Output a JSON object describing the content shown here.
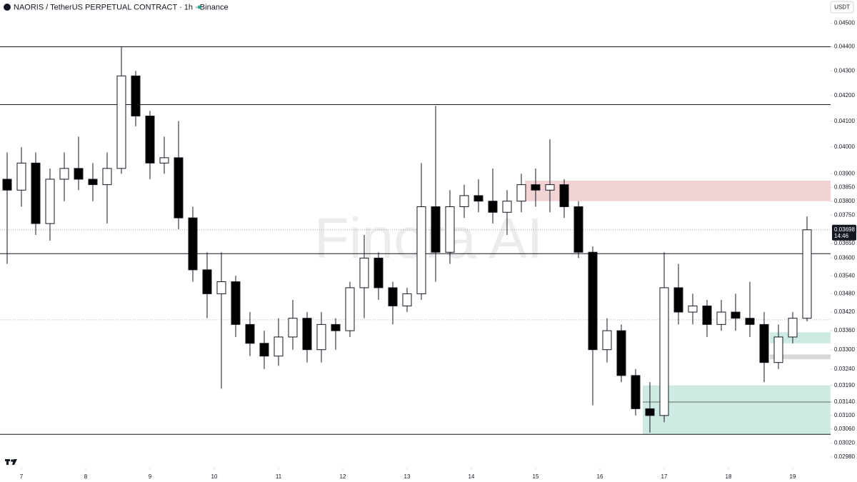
{
  "chart_data": {
    "type": "candlestick",
    "title": "NAORIS / TetherUS PERPETUAL CONTRACT · 1h · Binance",
    "currency": "USDT",
    "watermark": "Finora AI",
    "log_scale": true,
    "ylim": [
      0.0295,
      0.046
    ],
    "yticks": [
      {
        "value": 0.045,
        "label": "0.04500"
      },
      {
        "value": 0.044,
        "label": "0.04400"
      },
      {
        "value": 0.043,
        "label": "0.04300"
      },
      {
        "value": 0.042,
        "label": "0.04200"
      },
      {
        "value": 0.041,
        "label": "0.04100"
      },
      {
        "value": 0.04,
        "label": "0.04000"
      },
      {
        "value": 0.039,
        "label": "0.03900"
      },
      {
        "value": 0.0385,
        "label": "0.03850"
      },
      {
        "value": 0.038,
        "label": "0.03800"
      },
      {
        "value": 0.0375,
        "label": "0.03750"
      },
      {
        "value": 0.0365,
        "label": "0.03650"
      },
      {
        "value": 0.036,
        "label": "0.03600"
      },
      {
        "value": 0.0354,
        "label": "0.03540"
      },
      {
        "value": 0.0348,
        "label": "0.03480"
      },
      {
        "value": 0.0342,
        "label": "0.03420"
      },
      {
        "value": 0.0336,
        "label": "0.03360"
      },
      {
        "value": 0.033,
        "label": "0.03300"
      },
      {
        "value": 0.0324,
        "label": "0.03240"
      },
      {
        "value": 0.0319,
        "label": "0.03190"
      },
      {
        "value": 0.0314,
        "label": "0.03140"
      },
      {
        "value": 0.031,
        "label": "0.03100"
      },
      {
        "value": 0.0306,
        "label": "0.03060"
      },
      {
        "value": 0.0302,
        "label": "0.03020"
      },
      {
        "value": 0.0298,
        "label": "0.02980"
      }
    ],
    "xlim": [
      0,
      58.15
    ],
    "xticks": [
      {
        "value": 1.5,
        "label": "7"
      },
      {
        "value": 6,
        "label": "8"
      },
      {
        "value": 10.5,
        "label": "9"
      },
      {
        "value": 15,
        "label": "10"
      },
      {
        "value": 19.5,
        "label": "11"
      },
      {
        "value": 24,
        "label": "12"
      },
      {
        "value": 28.5,
        "label": "13"
      },
      {
        "value": 33,
        "label": "14"
      },
      {
        "value": 37.5,
        "label": "15"
      },
      {
        "value": 42,
        "label": "16"
      },
      {
        "value": 46.5,
        "label": "17"
      },
      {
        "value": 51,
        "label": "18"
      },
      {
        "value": 55.5,
        "label": "19"
      }
    ],
    "up_color": "#ffffff",
    "down_color": "#000000",
    "candles": {
      "open": [
        0.0388,
        0.0384,
        0.0394,
        0.0372,
        0.0388,
        0.0392,
        0.0388,
        0.0386,
        0.0392,
        0.0428,
        0.0412,
        0.0394,
        0.0396,
        0.0374,
        0.0356,
        0.0348,
        0.0352,
        0.0338,
        0.0332,
        0.0328,
        0.0334,
        0.034,
        0.033,
        0.0338,
        0.0336,
        0.035,
        0.036,
        0.035,
        0.0344,
        0.0348,
        0.0378,
        0.0362,
        0.0378,
        0.0382,
        0.038,
        0.0376,
        0.038,
        0.0386,
        0.0384,
        0.0386,
        0.0378,
        0.0362,
        0.033,
        0.0336,
        0.0322,
        0.0312,
        0.031,
        0.035,
        0.0342,
        0.0344,
        0.0338,
        0.0342,
        0.034,
        0.0338,
        0.0326,
        0.0334,
        0.034
      ],
      "high": [
        0.0398,
        0.04,
        0.0398,
        0.0392,
        0.0398,
        0.0404,
        0.0394,
        0.0398,
        0.044,
        0.043,
        0.0414,
        0.0404,
        0.041,
        0.0378,
        0.0362,
        0.0362,
        0.0354,
        0.0342,
        0.0336,
        0.034,
        0.0346,
        0.0342,
        0.0342,
        0.034,
        0.0352,
        0.0368,
        0.0362,
        0.0352,
        0.035,
        0.0394,
        0.0416,
        0.0384,
        0.0386,
        0.0388,
        0.0392,
        0.0384,
        0.039,
        0.0392,
        0.0403,
        0.0388,
        0.038,
        0.0364,
        0.034,
        0.0338,
        0.0324,
        0.032,
        0.0362,
        0.0358,
        0.0348,
        0.0346,
        0.0346,
        0.0348,
        0.0352,
        0.0342,
        0.0338,
        0.0342,
        0.03745
      ],
      "low": [
        0.0358,
        0.0378,
        0.0368,
        0.0366,
        0.038,
        0.0384,
        0.038,
        0.0372,
        0.039,
        0.0408,
        0.0388,
        0.039,
        0.037,
        0.0352,
        0.034,
        0.0318,
        0.0334,
        0.0328,
        0.0324,
        0.0325,
        0.033,
        0.0326,
        0.0326,
        0.033,
        0.0334,
        0.034,
        0.0346,
        0.0338,
        0.0342,
        0.0346,
        0.0352,
        0.0358,
        0.0374,
        0.0376,
        0.0372,
        0.0368,
        0.0376,
        0.0378,
        0.0376,
        0.0374,
        0.036,
        0.0313,
        0.0326,
        0.032,
        0.031,
        0.0305,
        0.0308,
        0.0338,
        0.0338,
        0.0334,
        0.0336,
        0.0336,
        0.0334,
        0.032,
        0.0324,
        0.0332,
        0.0339
      ],
      "close": [
        0.0384,
        0.0394,
        0.0372,
        0.0388,
        0.0392,
        0.0388,
        0.0386,
        0.0392,
        0.0428,
        0.0412,
        0.0394,
        0.0396,
        0.0374,
        0.0356,
        0.0348,
        0.0352,
        0.0338,
        0.0332,
        0.0328,
        0.0334,
        0.034,
        0.033,
        0.0338,
        0.0336,
        0.035,
        0.036,
        0.035,
        0.0344,
        0.0348,
        0.0378,
        0.0362,
        0.0378,
        0.0382,
        0.038,
        0.0376,
        0.038,
        0.0386,
        0.0384,
        0.0386,
        0.0378,
        0.0362,
        0.033,
        0.0336,
        0.0322,
        0.0312,
        0.031,
        0.035,
        0.0342,
        0.0344,
        0.0338,
        0.0342,
        0.034,
        0.0338,
        0.0326,
        0.0334,
        0.034,
        0.03698
      ]
    },
    "levels": [
      {
        "value": 0.044,
        "style": "solid"
      },
      {
        "value": 0.04165,
        "style": "solid"
      },
      {
        "value": 0.03615,
        "style": "solid"
      },
      {
        "value": 0.03395,
        "style": "dotted"
      },
      {
        "value": 0.03045,
        "style": "solid"
      }
    ],
    "zones": [
      {
        "low": 0.038,
        "high": 0.03875,
        "start": 36.75,
        "color": "#f2d3d4"
      },
      {
        "low": 0.03045,
        "high": 0.0319,
        "start": 45.0,
        "color": "#cdeae3"
      },
      {
        "low": 0.0332,
        "high": 0.03355,
        "start": 53.9,
        "color": "#cdeae3"
      },
      {
        "low": 0.0327,
        "high": 0.03285,
        "start": 53.9,
        "color": "#d9d9d9"
      }
    ],
    "zone_line": {
      "value": 0.0314,
      "start": 45.0,
      "color": "#9aa8a4"
    },
    "last_price": {
      "value": 0.03698,
      "label": "0.03698",
      "countdown": "14:46"
    }
  }
}
